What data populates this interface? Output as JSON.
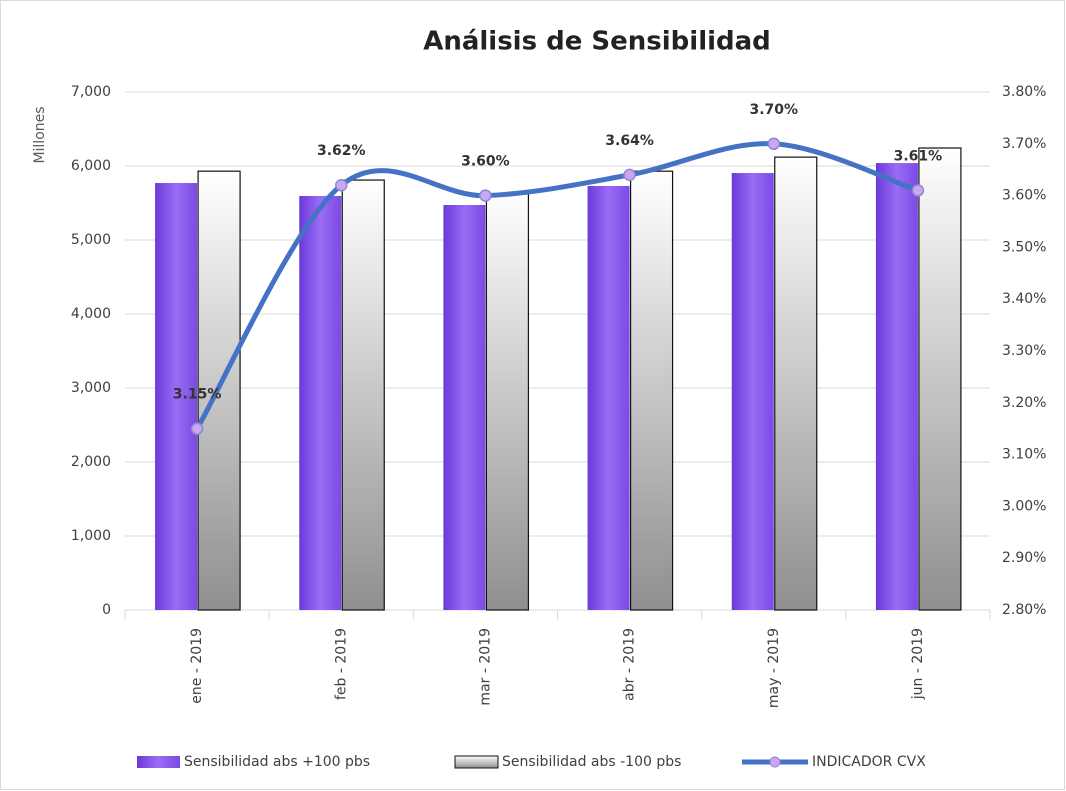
{
  "chart_data": {
    "type": "bar-line",
    "title": "Análisis de Sensibilidad",
    "y_label": "Millones",
    "categories": [
      "ene - 2019",
      "feb - 2019",
      "mar - 2019",
      "abr - 2019",
      "may - 2019",
      "jun - 2019"
    ],
    "series": [
      {
        "name": "Sensibilidad abs +100 pbs",
        "color": "#8b5cf0",
        "type": "bar",
        "values": [
          5770,
          5595,
          5473,
          5730,
          5905,
          6040
        ]
      },
      {
        "name": "Sensibilidad abs -100 pbs",
        "color": "#d0d0d0",
        "type": "bar",
        "values": [
          5930,
          5810,
          5622,
          5930,
          6120,
          6243
        ]
      },
      {
        "name": "INDICADOR CVX",
        "color": "#4472c4",
        "type": "line",
        "axis": "y2",
        "values": [
          3.15,
          3.62,
          3.6,
          3.64,
          3.7,
          3.61
        ],
        "value_labels": [
          "3.15%",
          "3.62%",
          "3.60%",
          "3.64%",
          "3.70%",
          "3.61%"
        ]
      }
    ],
    "ylim": [
      0,
      7000
    ],
    "yticks": [
      0,
      {
        "value": 1000,
        "label": "1,000"
      },
      {
        "value": 2000,
        "label": "2,000"
      },
      {
        "value": 3000,
        "label": "3,000"
      },
      {
        "value": 4000,
        "label": "4,000"
      },
      {
        "value": 5000,
        "label": "5,000"
      },
      {
        "value": 6000,
        "label": "6,000"
      },
      {
        "value": 7000,
        "label": "7,000"
      }
    ],
    "y2lim": [
      2.8,
      3.8
    ],
    "y2ticks": [
      {
        "value": 2.8,
        "label": "2.80%"
      },
      {
        "value": 2.9,
        "label": "2.90%"
      },
      {
        "value": 3.0,
        "label": "3.00%"
      },
      {
        "value": 3.1,
        "label": "3.10%"
      },
      {
        "value": 3.2,
        "label": "3.20%"
      },
      {
        "value": 3.3,
        "label": "3.30%"
      },
      {
        "value": 3.4,
        "label": "3.40%"
      },
      {
        "value": 3.5,
        "label": "3.50%"
      },
      {
        "value": 3.6,
        "label": "3.60%"
      },
      {
        "value": 3.7,
        "label": "3.70%"
      },
      {
        "value": 3.8,
        "label": "3.80%"
      }
    ],
    "grid": true,
    "legend": "bottom"
  }
}
